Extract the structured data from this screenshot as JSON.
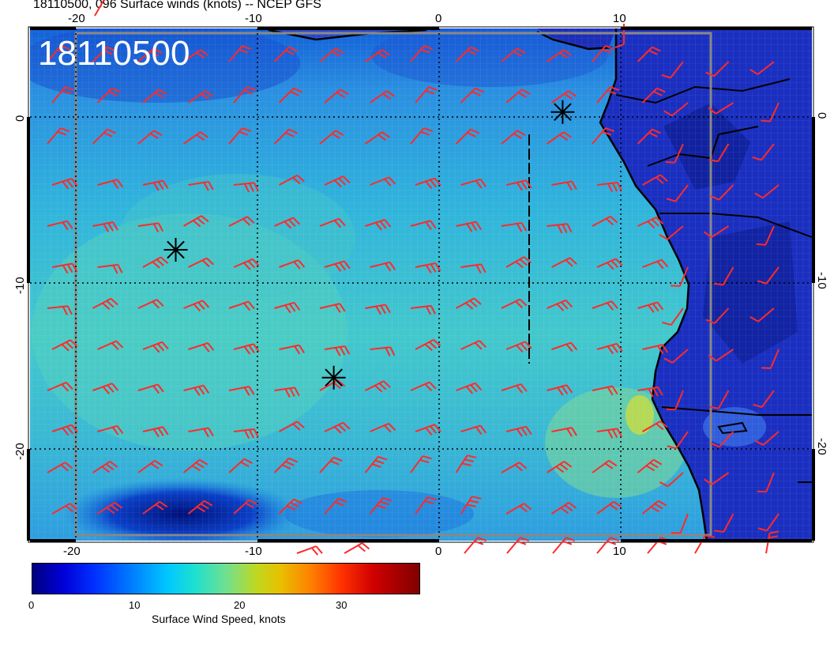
{
  "title": "18110500, 096 Surface winds (knots) -- NCEP GFS",
  "stamp": "18110500",
  "lon_ticks_top": [
    "-20",
    "-10",
    "0",
    "10"
  ],
  "lon_ticks_bottom": [
    "-20",
    "-10",
    "0",
    "10"
  ],
  "lat_ticks_left": [
    "0",
    "-10",
    "-20"
  ],
  "lat_ticks_right": [
    "0",
    "-10",
    "-20"
  ],
  "colorbar": {
    "ticks": [
      "0",
      "10",
      "20",
      "30"
    ],
    "label": "Surface Wind Speed, knots"
  },
  "colors": {
    "barb": "#ff2a2a",
    "ocean_mid": "#2fb0d8",
    "land": "#1a2fc0",
    "coast": "#000000"
  },
  "markers": [
    {
      "name": "storm-marker-1",
      "lon": -14.5,
      "lat": -8.0
    },
    {
      "name": "storm-marker-2",
      "lon": -5.8,
      "lat": -15.7
    },
    {
      "name": "storm-marker-3",
      "lon": 6.8,
      "lat": 0.3
    }
  ]
}
